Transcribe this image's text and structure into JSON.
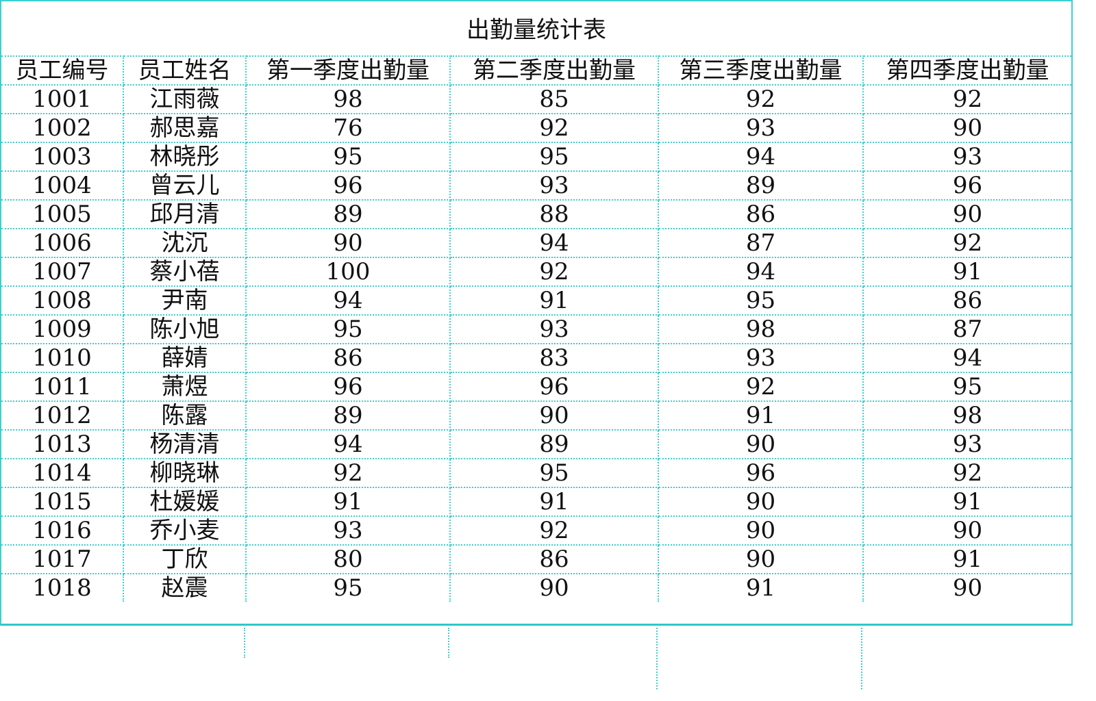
{
  "title": "出勤量统计表",
  "columns": [
    "员工编号",
    "员工姓名",
    "第一季度出勤量",
    "第二季度出勤量",
    "第三季度出勤量",
    "第四季度出勤量"
  ],
  "rows": [
    [
      "1001",
      "江雨薇",
      "98",
      "85",
      "92",
      "92"
    ],
    [
      "1002",
      "郝思嘉",
      "76",
      "92",
      "93",
      "90"
    ],
    [
      "1003",
      "林晓彤",
      "95",
      "95",
      "94",
      "93"
    ],
    [
      "1004",
      "曾云儿",
      "96",
      "93",
      "89",
      "96"
    ],
    [
      "1005",
      "邱月清",
      "89",
      "88",
      "86",
      "90"
    ],
    [
      "1006",
      "沈沉",
      "90",
      "94",
      "87",
      "92"
    ],
    [
      "1007",
      "蔡小蓓",
      "100",
      "92",
      "94",
      "91"
    ],
    [
      "1008",
      "尹南",
      "94",
      "91",
      "95",
      "86"
    ],
    [
      "1009",
      "陈小旭",
      "95",
      "93",
      "98",
      "87"
    ],
    [
      "1010",
      "薛婧",
      "86",
      "83",
      "93",
      "94"
    ],
    [
      "1011",
      "萧煜",
      "96",
      "96",
      "92",
      "95"
    ],
    [
      "1012",
      "陈露",
      "89",
      "90",
      "91",
      "98"
    ],
    [
      "1013",
      "杨清清",
      "94",
      "89",
      "90",
      "93"
    ],
    [
      "1014",
      "柳晓琳",
      "92",
      "95",
      "96",
      "92"
    ],
    [
      "1015",
      "杜媛媛",
      "91",
      "91",
      "90",
      "91"
    ],
    [
      "1016",
      "乔小麦",
      "93",
      "92",
      "90",
      "90"
    ],
    [
      "1017",
      "丁欣",
      "80",
      "86",
      "90",
      "91"
    ],
    [
      "1018",
      "赵震",
      "95",
      "90",
      "91",
      "90"
    ]
  ],
  "colors": {
    "grid": "#3ccfcf",
    "text": "#111111"
  }
}
